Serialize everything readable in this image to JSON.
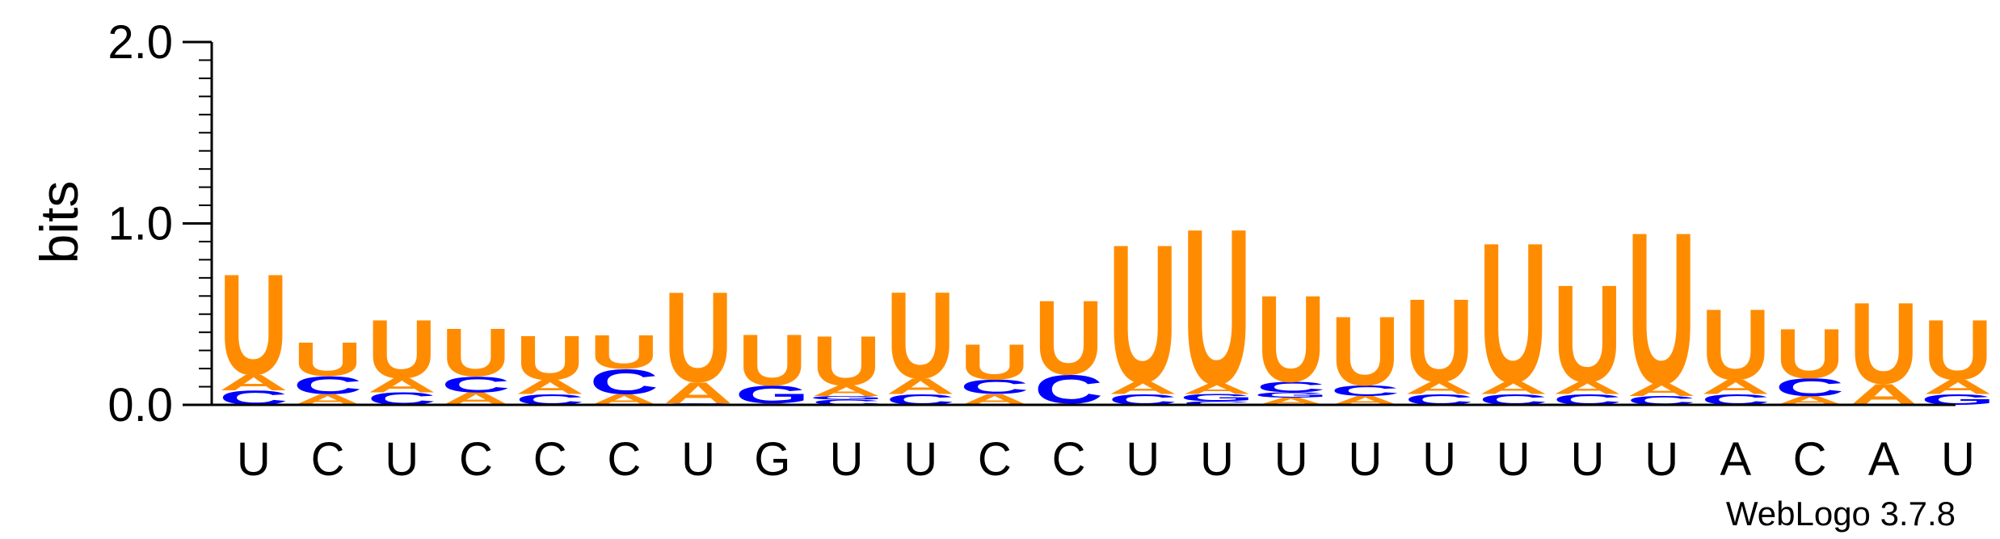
{
  "colors": {
    "U": "#FF8C00",
    "A": "#FF8C00",
    "C": "#0000FF",
    "G": "#0000FF",
    "axis": "#000000"
  },
  "chart_data": {
    "type": "sequence-logo",
    "ylabel": "bits",
    "ylim": [
      0,
      2.0
    ],
    "yticks": [
      "0.0",
      "1.0",
      "2.0"
    ],
    "footer": "WebLogo 3.7.8",
    "positions": [
      {
        "label": "U",
        "stack": [
          {
            "l": "C",
            "h": 0.08
          },
          {
            "l": "A",
            "h": 0.09
          },
          {
            "l": "U",
            "h": 0.57
          }
        ]
      },
      {
        "label": "C",
        "stack": [
          {
            "l": "A",
            "h": 0.06
          },
          {
            "l": "C",
            "h": 0.1
          },
          {
            "l": "U",
            "h": 0.19
          }
        ]
      },
      {
        "label": "U",
        "stack": [
          {
            "l": "C",
            "h": 0.07
          },
          {
            "l": "A",
            "h": 0.08
          },
          {
            "l": "U",
            "h": 0.33
          }
        ]
      },
      {
        "label": "C",
        "stack": [
          {
            "l": "A",
            "h": 0.07
          },
          {
            "l": "C",
            "h": 0.09
          },
          {
            "l": "U",
            "h": 0.27
          }
        ]
      },
      {
        "label": "C",
        "stack": [
          {
            "l": "C",
            "h": 0.06
          },
          {
            "l": "A",
            "h": 0.08
          },
          {
            "l": "U",
            "h": 0.25
          }
        ]
      },
      {
        "label": "C",
        "stack": [
          {
            "l": "A",
            "h": 0.06
          },
          {
            "l": "C",
            "h": 0.14
          },
          {
            "l": "U",
            "h": 0.19
          }
        ]
      },
      {
        "label": "U",
        "stack": [
          {
            "l": "C",
            "h": 0.01
          },
          {
            "l": "A",
            "h": 0.12
          },
          {
            "l": "U",
            "h": 0.51
          }
        ]
      },
      {
        "label": "G",
        "stack": [
          {
            "l": "A",
            "h": 0.01
          },
          {
            "l": "G",
            "h": 0.1
          },
          {
            "l": "U",
            "h": 0.29
          }
        ]
      },
      {
        "label": "U",
        "stack": [
          {
            "l": "C",
            "h": 0.03
          },
          {
            "l": "G",
            "h": 0.02
          },
          {
            "l": "A",
            "h": 0.06
          },
          {
            "l": "U",
            "h": 0.28
          }
        ]
      },
      {
        "label": "U",
        "stack": [
          {
            "l": "C",
            "h": 0.06
          },
          {
            "l": "A",
            "h": 0.09
          },
          {
            "l": "U",
            "h": 0.49
          }
        ]
      },
      {
        "label": "C",
        "stack": [
          {
            "l": "A",
            "h": 0.06
          },
          {
            "l": "C",
            "h": 0.08
          },
          {
            "l": "U",
            "h": 0.2
          }
        ]
      },
      {
        "label": "C",
        "stack": [
          {
            "l": "A",
            "h": 0.01
          },
          {
            "l": "C",
            "h": 0.16
          },
          {
            "l": "U",
            "h": 0.42
          }
        ]
      },
      {
        "label": "U",
        "stack": [
          {
            "l": "C",
            "h": 0.06
          },
          {
            "l": "A",
            "h": 0.07
          },
          {
            "l": "U",
            "h": 0.78
          }
        ]
      },
      {
        "label": "U",
        "stack": [
          {
            "l": "C",
            "h": 0.02
          },
          {
            "l": "G",
            "h": 0.04
          },
          {
            "l": "A",
            "h": 0.06
          },
          {
            "l": "U",
            "h": 0.88
          }
        ]
      },
      {
        "label": "U",
        "stack": [
          {
            "l": "A",
            "h": 0.04
          },
          {
            "l": "G",
            "h": 0.03
          },
          {
            "l": "C",
            "h": 0.06
          },
          {
            "l": "U",
            "h": 0.49
          }
        ]
      },
      {
        "label": "U",
        "stack": [
          {
            "l": "A",
            "h": 0.05
          },
          {
            "l": "C",
            "h": 0.06
          },
          {
            "l": "U",
            "h": 0.39
          }
        ]
      },
      {
        "label": "U",
        "stack": [
          {
            "l": "C",
            "h": 0.06
          },
          {
            "l": "A",
            "h": 0.07
          },
          {
            "l": "U",
            "h": 0.47
          }
        ]
      },
      {
        "label": "U",
        "stack": [
          {
            "l": "C",
            "h": 0.06
          },
          {
            "l": "A",
            "h": 0.07
          },
          {
            "l": "U",
            "h": 0.79
          }
        ]
      },
      {
        "label": "U",
        "stack": [
          {
            "l": "C",
            "h": 0.06
          },
          {
            "l": "A",
            "h": 0.07
          },
          {
            "l": "U",
            "h": 0.55
          }
        ]
      },
      {
        "label": "U",
        "stack": [
          {
            "l": "C",
            "h": 0.05
          },
          {
            "l": "A",
            "h": 0.07
          },
          {
            "l": "U",
            "h": 0.86
          }
        ]
      },
      {
        "label": "A",
        "stack": [
          {
            "l": "C",
            "h": 0.06
          },
          {
            "l": "A",
            "h": 0.08
          },
          {
            "l": "U",
            "h": 0.4
          }
        ]
      },
      {
        "label": "C",
        "stack": [
          {
            "l": "A",
            "h": 0.05
          },
          {
            "l": "C",
            "h": 0.1
          },
          {
            "l": "U",
            "h": 0.28
          }
        ]
      },
      {
        "label": "A",
        "stack": [
          {
            "l": "A",
            "h": 0.12
          },
          {
            "l": "U",
            "h": 0.46
          }
        ]
      },
      {
        "label": "U",
        "stack": [
          {
            "l": "G",
            "h": 0.06
          },
          {
            "l": "A",
            "h": 0.08
          },
          {
            "l": "U",
            "h": 0.34
          }
        ]
      }
    ]
  }
}
